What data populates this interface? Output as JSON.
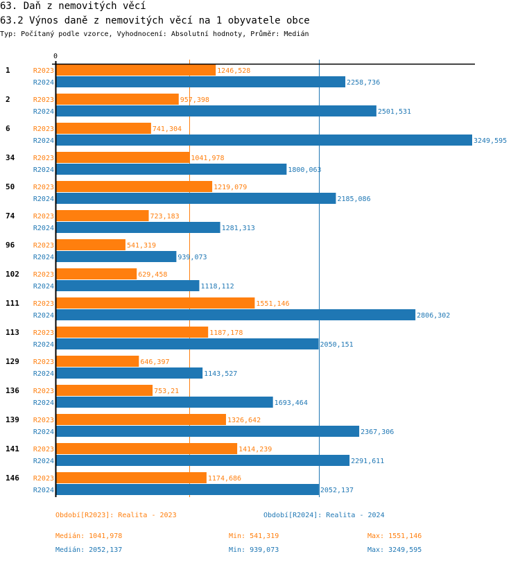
{
  "header": {
    "title": "63. Daň z nemovitých věcí",
    "subtitle": "63.2 Výnos daně z nemovitých věcí na 1 obyvatele obce",
    "info": "Typ: Počítaný podle vzorce, Vyhodnocení: Absolutní hodnoty, Průměr: Medián"
  },
  "colors": {
    "R2023": "#ff7f0e",
    "R2024": "#1f77b4",
    "axis": "#000000"
  },
  "chart_data": {
    "type": "bar",
    "orientation": "horizontal",
    "title": "63.2 Výnos daně z nemovitých věcí na 1 obyvatele obce",
    "xlabel": "",
    "ylabel": "",
    "x_tick_labels": [
      "0"
    ],
    "xlim": [
      0,
      3249.595
    ],
    "grid": false,
    "categories": [
      "1",
      "2",
      "6",
      "34",
      "50",
      "74",
      "96",
      "102",
      "111",
      "113",
      "129",
      "136",
      "139",
      "141",
      "146"
    ],
    "series": [
      {
        "name": "R2023",
        "values": [
          1246.528,
          957.398,
          741.304,
          1041.978,
          1219.079,
          723.183,
          541.319,
          629.458,
          1551.146,
          1187.178,
          646.397,
          753.21,
          1326.642,
          1414.239,
          1174.686
        ],
        "labels": [
          "1246,528",
          "957,398",
          "741,304",
          "1041,978",
          "1219,079",
          "723,183",
          "541,319",
          "629,458",
          "1551,146",
          "1187,178",
          "646,397",
          "753,21",
          "1326,642",
          "1414,239",
          "1174,686"
        ],
        "median": 1041.978
      },
      {
        "name": "R2024",
        "values": [
          2258.736,
          2501.531,
          3249.595,
          1800.063,
          2185.086,
          1281.313,
          939.073,
          1118.112,
          2806.302,
          2050.151,
          1143.527,
          1693.464,
          2367.306,
          2291.611,
          2052.137
        ],
        "labels": [
          "2258,736",
          "2501,531",
          "3249,595",
          "1800,063",
          "2185,086",
          "1281,313",
          "939,073",
          "1118,112",
          "2806,302",
          "2050,151",
          "1143,527",
          "1693,464",
          "2367,306",
          "2291,611",
          "2052,137"
        ],
        "median": 2052.137
      }
    ],
    "legend_position": "bottom"
  },
  "legend": {
    "r2023_title": "Období[R2023]: Realita - 2023",
    "r2024_title": "Období[R2024]: Realita - 2024",
    "r2023_median": "Medián: 1041,978",
    "r2023_min": "Min: 541,319",
    "r2023_max": "Max: 1551,146",
    "r2024_median": "Medián: 2052,137",
    "r2024_min": "Min: 939,073",
    "r2024_max": "Max: 3249,595"
  }
}
